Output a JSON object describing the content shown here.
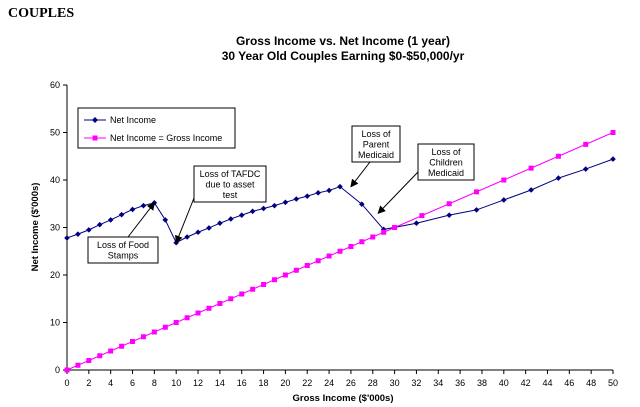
{
  "heading": "COUPLES",
  "chart_data": {
    "type": "line",
    "title": "Gross Income vs. Net Income (1 year)",
    "subtitle": "30 Year Old Couples Earning $0-$50,000/yr",
    "xlabel": "Gross Income ($'000s)",
    "ylabel": "Net Income ($'000s)",
    "xlim": [
      0,
      50
    ],
    "ylim": [
      0,
      60
    ],
    "x_ticks": [
      0,
      2,
      4,
      6,
      8,
      10,
      12,
      14,
      16,
      18,
      20,
      22,
      24,
      26,
      28,
      30,
      32,
      34,
      36,
      38,
      40,
      42,
      44,
      46,
      48,
      50
    ],
    "y_ticks": [
      0,
      10,
      20,
      30,
      40,
      50,
      60
    ],
    "grid": false,
    "legend_position": "top-left",
    "series": [
      {
        "name": "Net Income",
        "color": "#000080",
        "marker": "diamond",
        "points": [
          [
            0,
            27.8
          ],
          [
            1,
            28.6
          ],
          [
            2,
            29.5
          ],
          [
            3,
            30.6
          ],
          [
            4,
            31.6
          ],
          [
            5,
            32.7
          ],
          [
            6,
            33.8
          ],
          [
            7,
            34.6
          ],
          [
            8,
            35.2
          ],
          [
            9,
            31.6
          ],
          [
            10,
            26.8
          ],
          [
            11,
            28.0
          ],
          [
            12,
            29.0
          ],
          [
            13,
            29.9
          ],
          [
            14,
            30.9
          ],
          [
            15,
            31.8
          ],
          [
            16,
            32.6
          ],
          [
            17,
            33.4
          ],
          [
            18,
            34.0
          ],
          [
            19,
            34.6
          ],
          [
            20,
            35.3
          ],
          [
            21,
            36.0
          ],
          [
            22,
            36.6
          ],
          [
            23,
            37.3
          ],
          [
            24,
            37.8
          ],
          [
            25,
            38.6
          ],
          [
            27,
            34.9
          ],
          [
            29,
            29.6
          ],
          [
            32,
            30.9
          ],
          [
            35,
            32.6
          ],
          [
            37.5,
            33.7
          ],
          [
            40,
            35.8
          ],
          [
            42.5,
            37.9
          ],
          [
            45,
            40.4
          ],
          [
            47.5,
            42.3
          ],
          [
            50,
            44.4
          ]
        ]
      },
      {
        "name": "Net Income = Gross Income",
        "color": "#ff00ff",
        "marker": "square",
        "points": [
          [
            0,
            0
          ],
          [
            1,
            1
          ],
          [
            2,
            2
          ],
          [
            3,
            3
          ],
          [
            4,
            4
          ],
          [
            5,
            5
          ],
          [
            6,
            6
          ],
          [
            7,
            7
          ],
          [
            8,
            8
          ],
          [
            9,
            9
          ],
          [
            10,
            10
          ],
          [
            11,
            11
          ],
          [
            12,
            12
          ],
          [
            13,
            13
          ],
          [
            14,
            14
          ],
          [
            15,
            15
          ],
          [
            16,
            16
          ],
          [
            17,
            17
          ],
          [
            18,
            18
          ],
          [
            19,
            19
          ],
          [
            20,
            20
          ],
          [
            21,
            21
          ],
          [
            22,
            22
          ],
          [
            23,
            23
          ],
          [
            24,
            24
          ],
          [
            25,
            25
          ],
          [
            26,
            26
          ],
          [
            27,
            27
          ],
          [
            28,
            28
          ],
          [
            29,
            29
          ],
          [
            30,
            30
          ],
          [
            32.5,
            32.5
          ],
          [
            35,
            35
          ],
          [
            37.5,
            37.5
          ],
          [
            40,
            40
          ],
          [
            42.5,
            42.5
          ],
          [
            45,
            45
          ],
          [
            47.5,
            47.5
          ],
          [
            50,
            50
          ]
        ]
      }
    ],
    "annotations": [
      {
        "lines": [
          "Loss of Food",
          "Stamps"
        ],
        "target": [
          8,
          35.2
        ]
      },
      {
        "lines": [
          "Loss of TAFDC",
          "due to asset",
          "test"
        ],
        "target": [
          10,
          26.8
        ]
      },
      {
        "lines": [
          "Loss of",
          "Parent",
          "Medicaid"
        ],
        "target": [
          26,
          38.6
        ]
      },
      {
        "lines": [
          "Loss of",
          "Children",
          "Medicaid"
        ],
        "target": [
          28.5,
          33.0
        ]
      }
    ]
  }
}
